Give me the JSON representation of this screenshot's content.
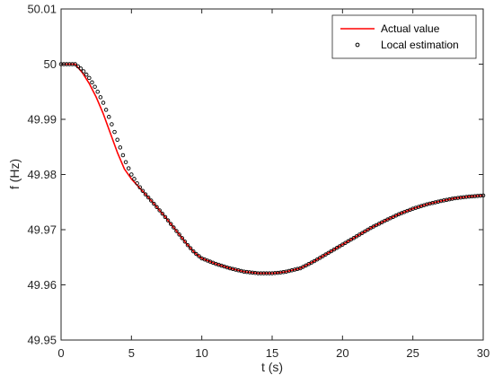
{
  "chart_data": {
    "type": "line",
    "title": "",
    "xlabel": "t (s)",
    "ylabel": "f (Hz)",
    "xlim": [
      0,
      30
    ],
    "ylim": [
      49.95,
      50.01
    ],
    "xticks": [
      0,
      5,
      10,
      15,
      20,
      25,
      30
    ],
    "xtick_labels": [
      "0",
      "5",
      "10",
      "15",
      "20",
      "25",
      "30"
    ],
    "yticks": [
      49.95,
      49.96,
      49.97,
      49.98,
      49.99,
      50,
      50.01
    ],
    "ytick_labels": [
      "49.95",
      "49.96",
      "49.97",
      "49.98",
      "49.99",
      "50",
      "50.01"
    ],
    "grid": false,
    "legend_position": "top-right",
    "series": [
      {
        "name": "Actual value",
        "style": "line",
        "color": "#ff0000",
        "x": [
          0,
          1,
          1.5,
          2,
          2.5,
          3,
          3.5,
          4,
          4.5,
          5,
          5.5,
          6,
          6.5,
          7,
          7.5,
          8,
          8.5,
          9,
          9.5,
          10,
          11,
          12,
          13,
          14,
          15,
          15.5,
          16,
          17,
          18,
          19,
          20,
          21,
          22,
          23,
          24,
          25,
          26,
          27,
          28,
          29,
          30
        ],
        "y": [
          50.0,
          50.0,
          49.9985,
          49.9965,
          49.994,
          49.991,
          49.9875,
          49.984,
          49.981,
          49.9792,
          49.9778,
          49.9764,
          49.975,
          49.9735,
          49.972,
          49.9704,
          49.9688,
          49.9672,
          49.9658,
          49.9648,
          49.9638,
          49.963,
          49.9624,
          49.9621,
          49.9621,
          49.9622,
          49.9624,
          49.963,
          49.9643,
          49.9658,
          49.9673,
          49.9688,
          49.9703,
          49.9716,
          49.9728,
          49.9738,
          49.9746,
          49.9752,
          49.9757,
          49.976,
          49.9762
        ]
      },
      {
        "name": "Local estimation",
        "style": "markers",
        "color": "#000000",
        "x": [
          0,
          1,
          1.5,
          2,
          2.5,
          3,
          3.5,
          4,
          4.5,
          5,
          5.5,
          6,
          6.5,
          7,
          7.5,
          8,
          8.5,
          9,
          9.5,
          10,
          11,
          12,
          13,
          14,
          15,
          15.5,
          16,
          17,
          18,
          19,
          20,
          21,
          22,
          23,
          24,
          25,
          26,
          27,
          28,
          29,
          30
        ],
        "y": [
          50.0,
          50.0,
          49.999,
          49.9975,
          49.9955,
          49.993,
          49.9898,
          49.9863,
          49.9828,
          49.98,
          49.978,
          49.9764,
          49.975,
          49.9735,
          49.972,
          49.9704,
          49.9688,
          49.9672,
          49.9658,
          49.9648,
          49.9638,
          49.963,
          49.9624,
          49.9621,
          49.9621,
          49.9622,
          49.9624,
          49.963,
          49.9643,
          49.9658,
          49.9673,
          49.9688,
          49.9703,
          49.9716,
          49.9728,
          49.9738,
          49.9746,
          49.9752,
          49.9757,
          49.976,
          49.9762
        ]
      }
    ]
  }
}
